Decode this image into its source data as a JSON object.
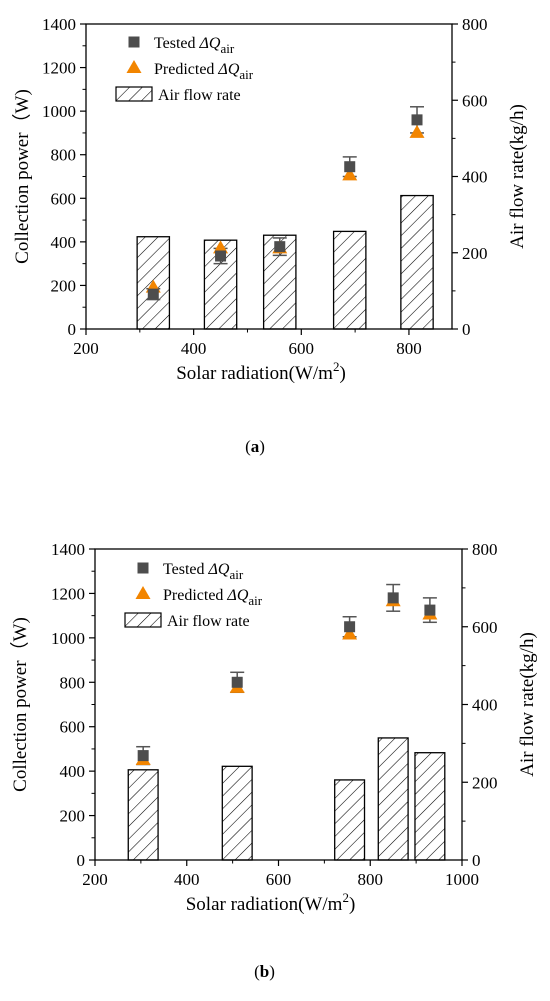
{
  "colors": {
    "tested": "#4d4d4d",
    "predicted": "#f28500",
    "bar": "#000000",
    "error": "#555555"
  },
  "chart_data": [
    {
      "type": "bar",
      "panel_label": {
        "before": "(",
        "bold": "a",
        "after": ")"
      },
      "xlabel": "Solar radiation(W/m",
      "xlabel_sup": "2",
      "xlabel_end": ")",
      "ylabel": "Collection power（W)",
      "y2label": "Air flow rate(kg/h)",
      "xlim": [
        200,
        880
      ],
      "ylim": [
        0,
        1400
      ],
      "y2lim": [
        0,
        800
      ],
      "xticks": [
        200,
        400,
        600,
        800
      ],
      "yticks": [
        0,
        200,
        400,
        600,
        800,
        1000,
        1200,
        1400
      ],
      "y2ticks": [
        0,
        200,
        400,
        600,
        800
      ],
      "bar_width": 60,
      "legend": {
        "position": "top-left",
        "tested": {
          "prefix": "Tested ",
          "symbol": "ΔQ",
          "sub": "air"
        },
        "predicted": {
          "prefix": "Predicted ",
          "symbol": "ΔQ",
          "sub": "air"
        },
        "bars": "Air flow rate"
      },
      "air_flow_rate": [
        {
          "x": 325,
          "value": 242
        },
        {
          "x": 450,
          "value": 233
        },
        {
          "x": 560,
          "value": 246
        },
        {
          "x": 690,
          "value": 256
        },
        {
          "x": 815,
          "value": 350
        }
      ],
      "tested": [
        {
          "x": 325,
          "value": 160,
          "err": 25
        },
        {
          "x": 450,
          "value": 335,
          "err": 35
        },
        {
          "x": 560,
          "value": 378,
          "err": 40
        },
        {
          "x": 690,
          "value": 745,
          "err": 45
        },
        {
          "x": 815,
          "value": 960,
          "err": 60
        }
      ],
      "predicted": [
        {
          "x": 325,
          "value": 190
        },
        {
          "x": 450,
          "value": 370
        },
        {
          "x": 560,
          "value": 370
        },
        {
          "x": 690,
          "value": 705
        },
        {
          "x": 815,
          "value": 900
        }
      ]
    },
    {
      "type": "bar",
      "panel_label": {
        "before": "(",
        "bold": "b",
        "after": ")"
      },
      "xlabel": "Solar radiation(W/m",
      "xlabel_sup": "2",
      "xlabel_end": ")",
      "ylabel": "Collection power（W)",
      "y2label": "Air flow rate(kg/h)",
      "xlim": [
        200,
        1000
      ],
      "ylim": [
        0,
        1400
      ],
      "y2lim": [
        0,
        800
      ],
      "xticks": [
        200,
        400,
        600,
        800,
        1000
      ],
      "yticks": [
        0,
        200,
        400,
        600,
        800,
        1000,
        1200,
        1400
      ],
      "y2ticks": [
        0,
        200,
        400,
        600,
        800
      ],
      "bar_width": 65,
      "legend": {
        "position": "top-left",
        "tested": {
          "prefix": "Tested ",
          "symbol": "ΔQ",
          "sub": "air"
        },
        "predicted": {
          "prefix": "Predicted ",
          "symbol": "ΔQ",
          "sub": "air"
        },
        "bars": "Air flow rate"
      },
      "air_flow_rate": [
        {
          "x": 305,
          "value": 232
        },
        {
          "x": 510,
          "value": 241
        },
        {
          "x": 755,
          "value": 206
        },
        {
          "x": 850,
          "value": 314
        },
        {
          "x": 930,
          "value": 276
        }
      ],
      "tested": [
        {
          "x": 305,
          "value": 470,
          "err": 40
        },
        {
          "x": 510,
          "value": 800,
          "err": 45
        },
        {
          "x": 755,
          "value": 1050,
          "err": 45
        },
        {
          "x": 850,
          "value": 1180,
          "err": 60
        },
        {
          "x": 930,
          "value": 1125,
          "err": 55
        }
      ],
      "predicted": [
        {
          "x": 305,
          "value": 450
        },
        {
          "x": 510,
          "value": 775
        },
        {
          "x": 755,
          "value": 1015
        },
        {
          "x": 850,
          "value": 1165
        },
        {
          "x": 930,
          "value": 1105
        }
      ]
    }
  ]
}
